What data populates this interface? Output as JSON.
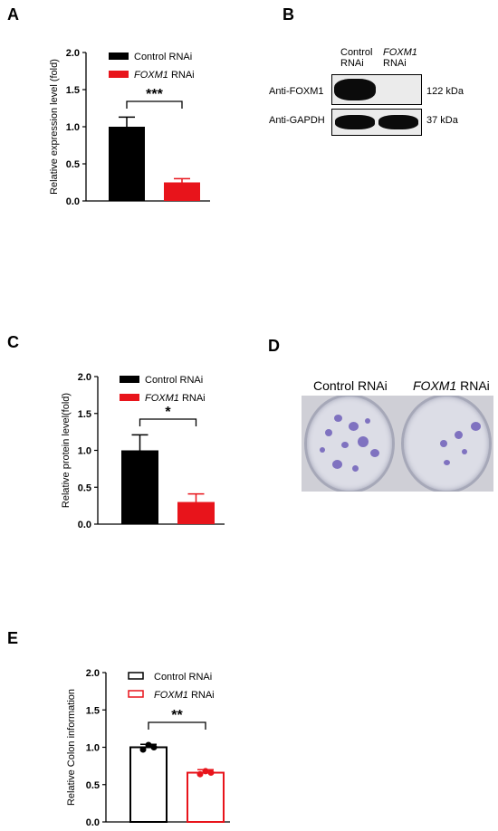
{
  "panels": {
    "a": "A",
    "b": "B",
    "c": "C",
    "d": "D",
    "e": "E"
  },
  "legend": {
    "control": "Control RNAi",
    "foxm1_italic": "FOXM1",
    "foxm1_rest": " RNAi"
  },
  "colors": {
    "control": "#000000",
    "foxm1": "#e8141b",
    "outline_control": "#000000",
    "outline_foxm1": "#e8141b"
  },
  "blot": {
    "lane1": [
      "Control",
      "RNAi"
    ],
    "lane2_italic": "FOXM1",
    "lane2_rest": "RNAi",
    "row1_label": "Anti-FOXM1",
    "row1_kda": "122 kDa",
    "row2_label": "Anti-GAPDH",
    "row2_kda": "37 kDa"
  },
  "colony": {
    "label_control": "Control RNAi",
    "label_foxm1_italic": "FOXM1",
    "label_foxm1_rest": " RNAi"
  },
  "chart_data": [
    {
      "id": "A",
      "type": "bar",
      "categories": [
        "Control RNAi",
        "FOXM1 RNAi"
      ],
      "values": [
        1.0,
        0.25
      ],
      "errors": [
        0.13,
        0.05
      ],
      "ylabel": "Relative expression level (fold)",
      "ylim": [
        0,
        2.0
      ],
      "yticks": [
        "0.0",
        "0.5",
        "1.0",
        "1.5",
        "2.0"
      ],
      "significance": "***",
      "style": "filled",
      "legend": "top-right"
    },
    {
      "id": "C",
      "type": "bar",
      "categories": [
        "Control RNAi",
        "FOXM1 RNAi"
      ],
      "values": [
        1.0,
        0.3
      ],
      "errors": [
        0.21,
        0.11
      ],
      "ylabel": "Relative protein level(fold)",
      "ylim": [
        0,
        2.0
      ],
      "yticks": [
        "0.0",
        "0.5",
        "1.0",
        "1.5",
        "2.0"
      ],
      "significance": "*",
      "style": "filled",
      "legend": "top-right"
    },
    {
      "id": "E",
      "type": "bar",
      "categories": [
        "Control RNAi",
        "FOXM1 RNAi"
      ],
      "values": [
        1.0,
        0.66
      ],
      "errors": [
        0.04,
        0.04
      ],
      "points": [
        [
          0.97,
          1.03,
          1.0
        ],
        [
          0.64,
          0.68,
          0.66
        ]
      ],
      "ylabel": "Relative Colon information",
      "ylim": [
        0,
        2.0
      ],
      "yticks": [
        "0.0",
        "0.5",
        "1.0",
        "1.5",
        "2.0"
      ],
      "significance": "**",
      "style": "outlined",
      "legend": "top-right"
    }
  ]
}
